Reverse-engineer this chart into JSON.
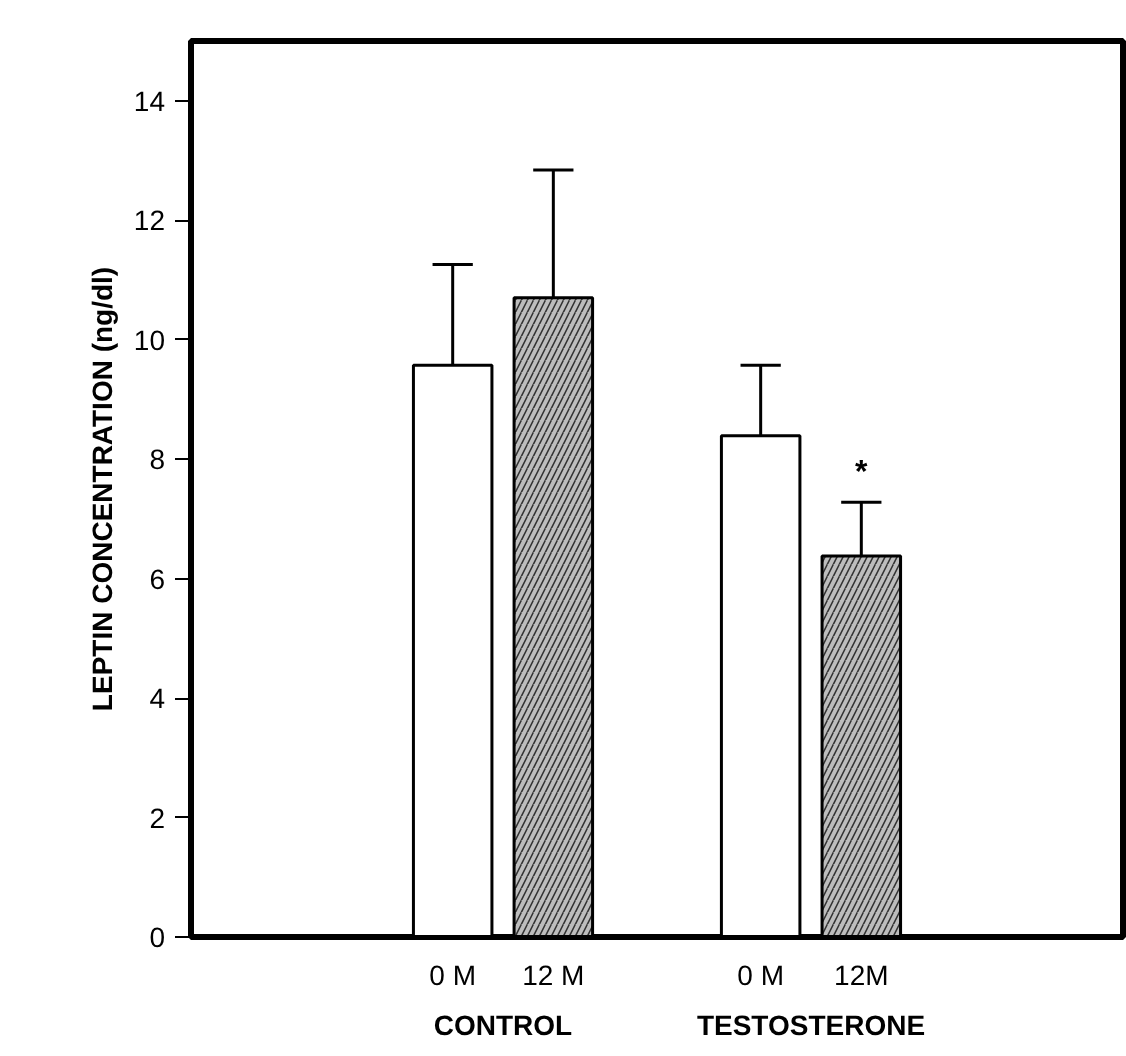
{
  "chart_data": {
    "type": "bar",
    "ylabel": "LEPTIN CONCENTRATION (ng/dl)",
    "categories": [
      "0 M",
      "12 M",
      "0 M",
      "12M"
    ],
    "values": [
      9.57,
      10.7,
      8.39,
      6.38
    ],
    "colors": [
      "#ffffff",
      "#bdbdbd",
      "#ffffff",
      "#bdbdbd"
    ],
    "errors": [
      [
        9.57,
        11.26
      ],
      [
        10.7,
        12.84
      ],
      [
        8.39,
        9.57
      ],
      [
        6.38,
        7.28
      ]
    ],
    "ylim": [
      0,
      15
    ],
    "yticks": [
      0,
      2,
      4,
      6,
      8,
      10,
      12,
      14
    ],
    "annotations": [
      "CONTROL",
      "TESTOSTERONE",
      {
        "text": "*",
        "x": "12M",
        "y": 7.28
      }
    ]
  }
}
